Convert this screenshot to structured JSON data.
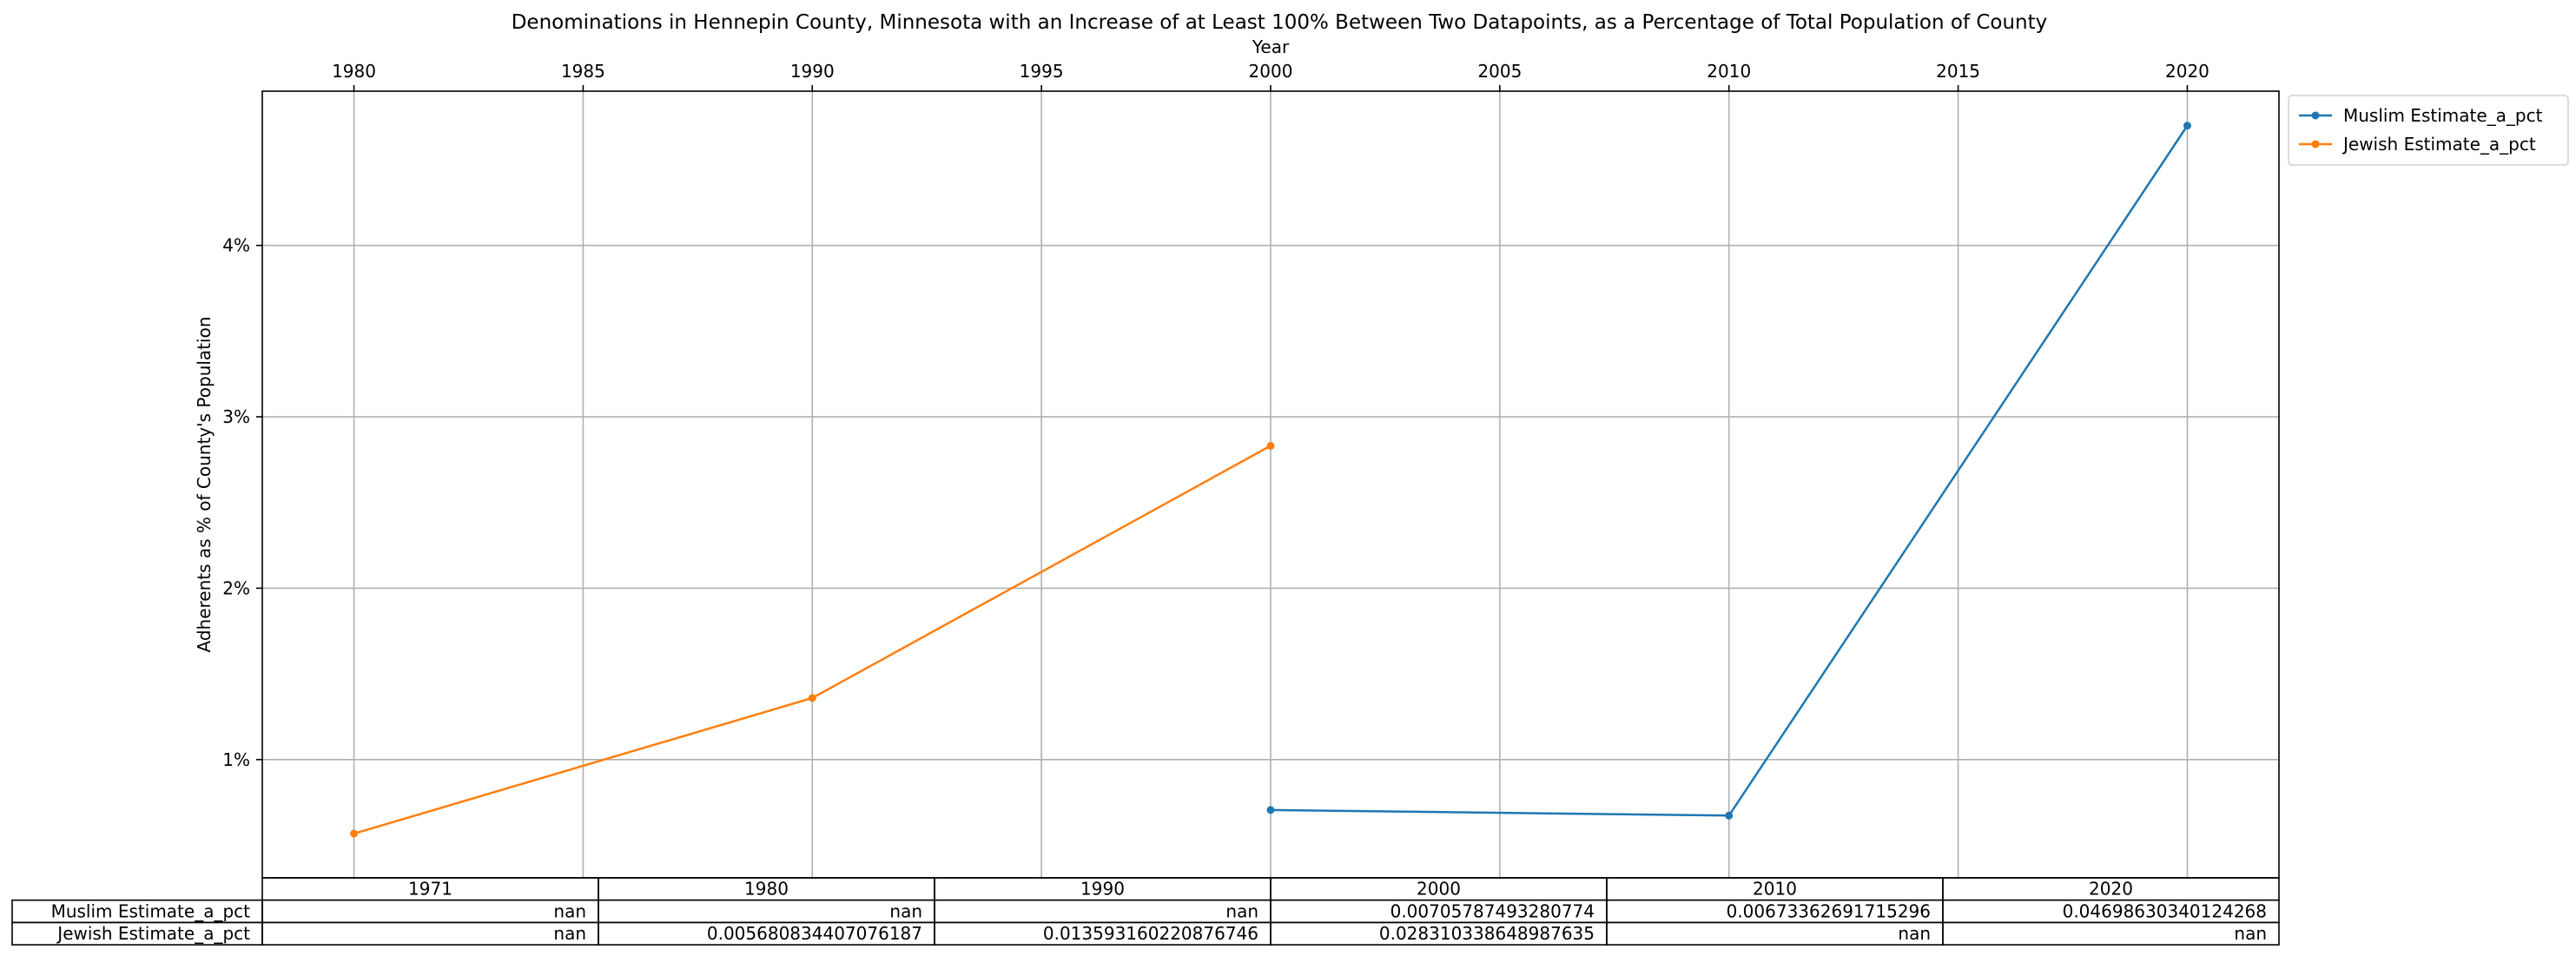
{
  "chart_data": {
    "type": "line",
    "title": "Denominations in Hennepin County, Minnesota with an Increase of at Least 100% Between Two Datapoints, as a Percentage of Total Population of County",
    "xlabel": "Year",
    "ylabel": "Adherents as % of County's Population",
    "x_axis_position": "top",
    "x_ticks": [
      1980,
      1985,
      1990,
      1995,
      2000,
      2005,
      2010,
      2015,
      2020
    ],
    "x_tick_labels": [
      "1980",
      "1985",
      "1990",
      "1995",
      "2000",
      "2005",
      "2010",
      "2015",
      "2020"
    ],
    "xlim": [
      1978,
      2022
    ],
    "y_ticks": [
      0.01,
      0.02,
      0.03,
      0.04
    ],
    "y_tick_labels": [
      "1%",
      "2%",
      "3%",
      "4%"
    ],
    "ylim": [
      0.0031,
      0.049
    ],
    "grid": true,
    "legend_position": "outside-top-right",
    "series": [
      {
        "name": "Muslim Estimate_a_pct",
        "color": "#1f77b4",
        "x": [
          2000,
          2010,
          2020
        ],
        "values": [
          0.00705787493280774,
          0.00673362691715296,
          0.04698630340124268
        ]
      },
      {
        "name": "Jewish Estimate_a_pct",
        "color": "#ff7f0e",
        "x": [
          1980,
          1990,
          2000
        ],
        "values": [
          0.005680834407076187,
          0.013593160220876746,
          0.028310338648987635
        ]
      }
    ],
    "table": {
      "col_labels": [
        "1971",
        "1980",
        "1990",
        "2000",
        "2010",
        "2020"
      ],
      "rows": [
        {
          "label": "Muslim Estimate_a_pct",
          "cells": [
            "nan",
            "nan",
            "nan",
            "0.00705787493280774",
            "0.00673362691715296",
            "0.04698630340124268"
          ]
        },
        {
          "label": "Jewish Estimate_a_pct",
          "cells": [
            "nan",
            "0.005680834407076187",
            "0.013593160220876746",
            "0.028310338648987635",
            "nan",
            "nan"
          ]
        }
      ]
    }
  }
}
